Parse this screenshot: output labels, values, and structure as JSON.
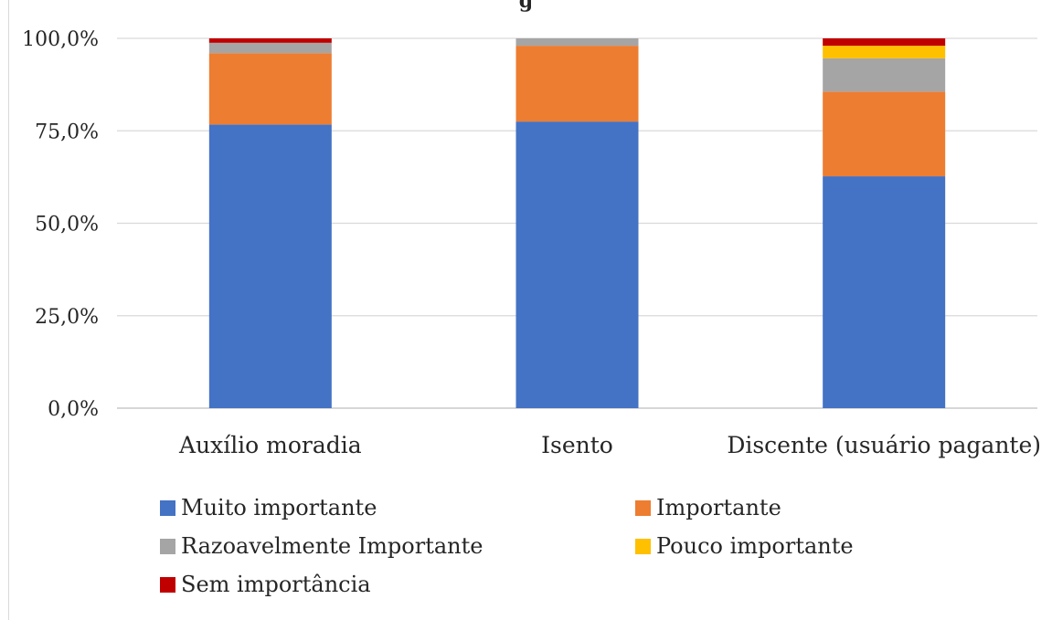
{
  "chart_data": {
    "type": "bar",
    "stacked": true,
    "title_fragment": "g",
    "categories": [
      "Auxílio moradia",
      "Isento",
      "Discente (usuário pagante)"
    ],
    "y_ticks": [
      "0,0%",
      "25,0%",
      "50,0%",
      "75,0%",
      "100,0%"
    ],
    "ylim": [
      0,
      100
    ],
    "grid": true,
    "legend_position": "bottom",
    "series": [
      {
        "name": "Muito importante",
        "color": "#4472c4",
        "values": [
          76.7,
          77.5,
          62.7
        ]
      },
      {
        "name": "Importante",
        "color": "#ed7d31",
        "values": [
          19.3,
          20.5,
          22.9
        ]
      },
      {
        "name": "Razoavelmente Importante",
        "color": "#a5a5a5",
        "values": [
          2.8,
          2.0,
          9.0
        ]
      },
      {
        "name": "Pouco importante",
        "color": "#ffc000",
        "values": [
          0.0,
          0.0,
          3.4
        ]
      },
      {
        "name": "Sem importância",
        "color": "#c00000",
        "values": [
          1.2,
          0.0,
          2.0
        ]
      }
    ]
  }
}
